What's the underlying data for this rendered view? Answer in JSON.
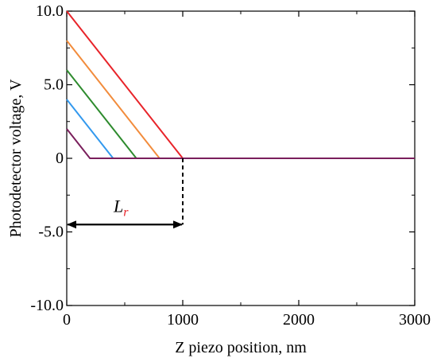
{
  "chart_data": {
    "type": "line",
    "xlabel": "Z piezo position, nm",
    "ylabel": "Photodetector voltage, V",
    "xlim": [
      0,
      3000
    ],
    "ylim": [
      -10,
      10
    ],
    "x_ticks": [
      0,
      1000,
      2000,
      3000
    ],
    "x_tick_labels": [
      "0",
      "1000",
      "2000",
      "3000"
    ],
    "y_ticks": [
      10,
      5,
      0,
      -5,
      -10
    ],
    "y_tick_labels": [
      "10.0",
      "5.0",
      "0",
      "-5.0",
      "-10.0"
    ],
    "grid": false,
    "series": [
      {
        "color": "#e8242a",
        "x": [
          0,
          1000,
          3000
        ],
        "y": [
          10,
          0,
          0
        ]
      },
      {
        "color": "#f28c3c",
        "x": [
          0,
          800,
          3000
        ],
        "y": [
          8,
          0,
          0
        ]
      },
      {
        "color": "#2e8b2e",
        "x": [
          0,
          600,
          3000
        ],
        "y": [
          6,
          0,
          0
        ]
      },
      {
        "color": "#3399ee",
        "x": [
          0,
          400,
          3000
        ],
        "y": [
          4,
          0,
          0
        ]
      },
      {
        "color": "#7a1f5c",
        "x": [
          0,
          200,
          3000
        ],
        "y": [
          2,
          0,
          0
        ]
      }
    ],
    "annotations": {
      "length_label": {
        "main": "L",
        "subscript": "r",
        "subscript_color": "#e8242a"
      },
      "arrow": {
        "x_start": 0,
        "x_end": 1000,
        "y": -4.5
      },
      "dashed_line": {
        "x": 1000,
        "y_from": 0,
        "y_to": -4.5
      }
    }
  }
}
